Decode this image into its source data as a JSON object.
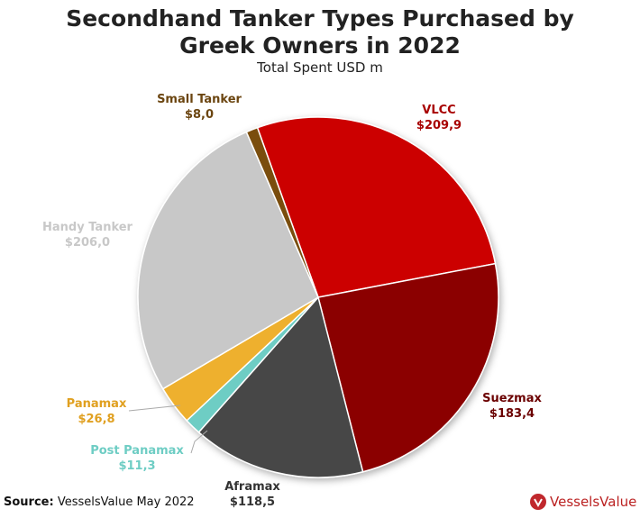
{
  "chart_data": {
    "type": "pie",
    "title": "Secondhand Tanker Types Purchased by Greek Owners in 2022",
    "subtitle": "Total Spent USD m",
    "categories": [
      "VLCC",
      "Suezmax",
      "Aframax",
      "Post Panamax",
      "Panamax",
      "Handy Tanker",
      "Small Tanker"
    ],
    "values": [
      209.9,
      183.4,
      118.5,
      11.3,
      26.8,
      206.0,
      8.0
    ],
    "value_labels": [
      "$209,9",
      "$183,4",
      "$118,5",
      "$11,3",
      "$26,8",
      "$206,0",
      "$8,0"
    ],
    "colors": [
      "#cc0000",
      "#8b0000",
      "#474747",
      "#6ecdc4",
      "#eeb02e",
      "#c8c8c8",
      "#7a4e10"
    ]
  },
  "source_label": "Source:",
  "source_text": "VesselsValue May 2022",
  "logo_text": "VesselsValue"
}
